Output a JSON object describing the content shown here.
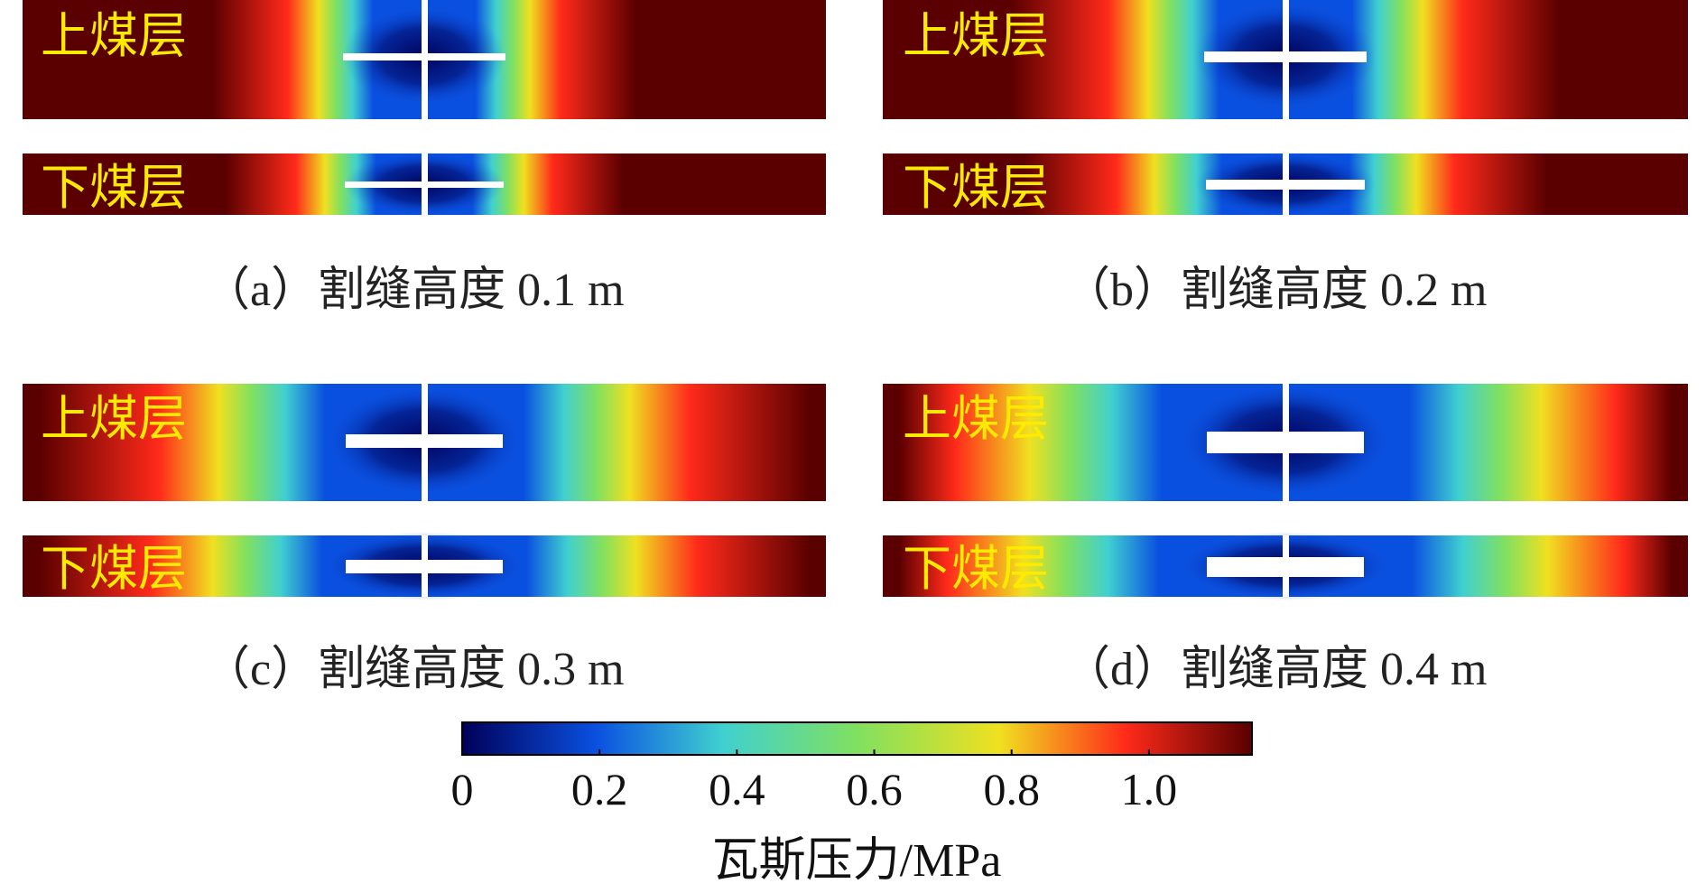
{
  "chart_data": {
    "type": "heatmap",
    "description_kind": "gas pressure field in upper and lower coal seams",
    "value_range": [
      0,
      1.15
    ],
    "panels": [
      {
        "id": "a",
        "caption": "（a）割缝高度 0.1 m",
        "slot_height_m": 0.1,
        "upper_label": "上煤层",
        "lower_label": "下煤层"
      },
      {
        "id": "b",
        "caption": "（b）割缝高度 0.2 m",
        "slot_height_m": 0.2,
        "upper_label": "上煤层",
        "lower_label": "下煤层"
      },
      {
        "id": "c",
        "caption": "（c）割缝高度 0.3 m",
        "slot_height_m": 0.3,
        "upper_label": "上煤层",
        "lower_label": "下煤层"
      },
      {
        "id": "d",
        "caption": "（d）割缝高度 0.4 m",
        "slot_height_m": 0.4,
        "upper_label": "上煤层",
        "lower_label": "下煤层"
      }
    ],
    "colorbar": {
      "title": "瓦斯压力/MPa",
      "ticks": [
        0,
        0.2,
        0.4,
        0.6,
        0.8,
        1.0
      ],
      "tick_labels": [
        "0",
        "0.2",
        "0.4",
        "0.6",
        "0.8",
        "1.0"
      ],
      "min": 0,
      "max": 1.15
    }
  },
  "colors": {
    "dark_blue": "#00005a",
    "blue": "#0a50e0",
    "cyan": "#40d0d0",
    "green": "#80e060",
    "yellow": "#f0e020",
    "red": "#ff2a1a",
    "dark_red": "#5a0000",
    "label_yellow": "#ffea00"
  }
}
